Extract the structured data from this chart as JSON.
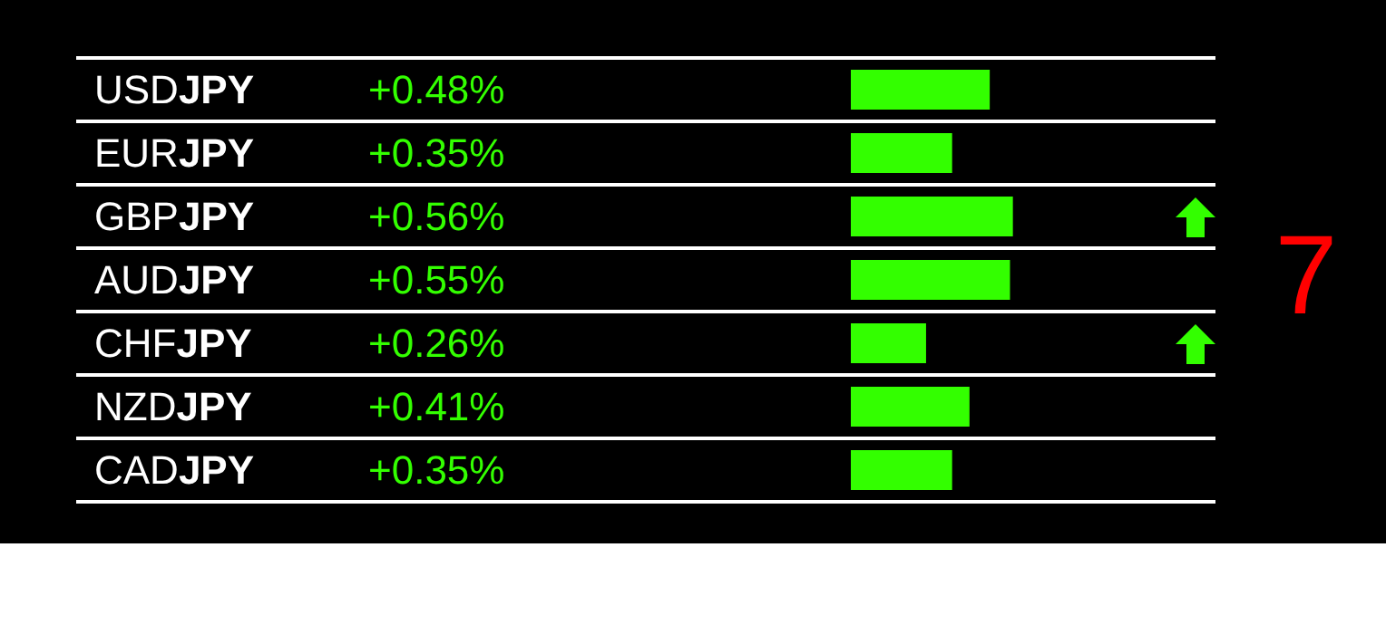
{
  "chart_data": {
    "type": "bar",
    "orientation": "horizontal",
    "categories": [
      "USDJPY",
      "EURJPY",
      "GBPJPY",
      "AUDJPY",
      "CHFJPY",
      "NZDJPY",
      "CADJPY"
    ],
    "values": [
      0.48,
      0.35,
      0.56,
      0.55,
      0.26,
      0.41,
      0.35
    ],
    "value_labels": [
      "+0.48%",
      "+0.35%",
      "+0.56%",
      "+0.55%",
      "+0.26%",
      "+0.41%",
      "+0.35%"
    ],
    "color": "#33ff00",
    "annotations": [
      "7"
    ]
  }
}
